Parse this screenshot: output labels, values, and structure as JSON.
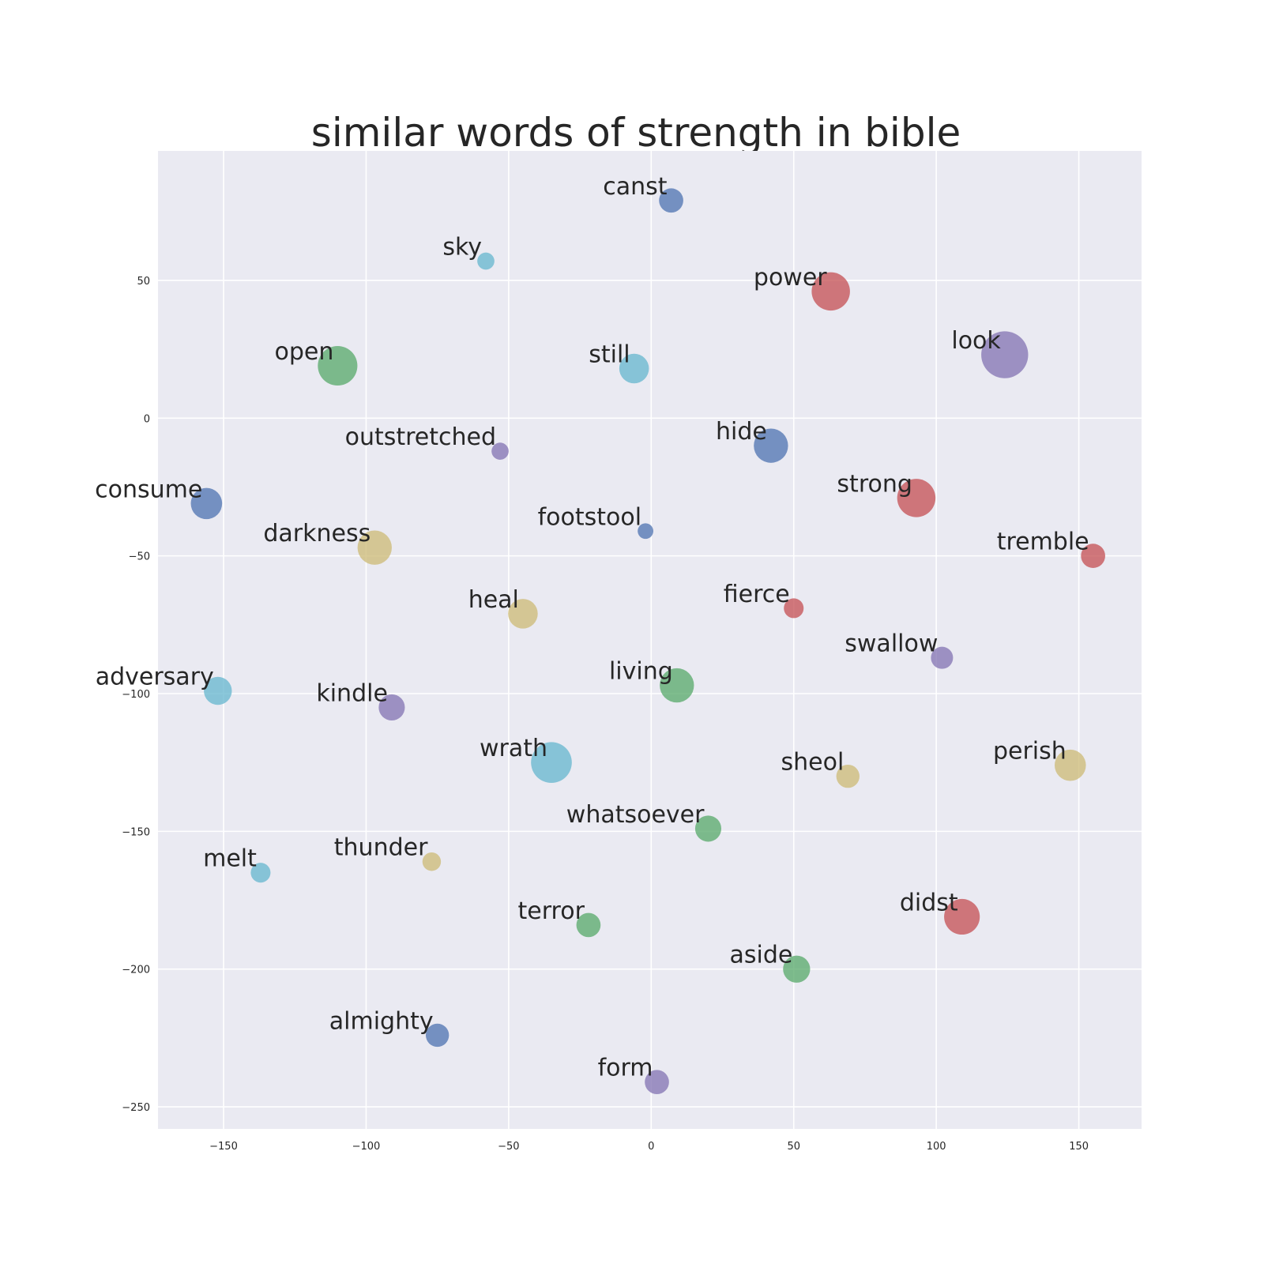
{
  "chart_data": {
    "type": "scatter",
    "title": "similar words of strength in bible",
    "xlabel": "",
    "ylabel": "",
    "xlim": [
      -173,
      172
    ],
    "ylim": [
      -258,
      97
    ],
    "xticks": [
      -150,
      -100,
      -50,
      0,
      50,
      100,
      150
    ],
    "yticks": [
      50,
      0,
      -50,
      -100,
      -150,
      -200,
      -250
    ],
    "xtick_labels": [
      "−150",
      "−100",
      "−50",
      "0",
      "50",
      "100",
      "150"
    ],
    "ytick_labels": [
      "50",
      "0",
      "−50",
      "−100",
      "−150",
      "−200",
      "−250"
    ],
    "grid": true,
    "background": "#eaeaf2",
    "colors": {
      "blue": "#4c72b0",
      "green": "#55a868",
      "red": "#c44e52",
      "purple": "#8172b2",
      "yellow": "#ccb974",
      "cyan": "#64b5cd"
    },
    "points": [
      {
        "word": "canst",
        "x": 7,
        "y": 79,
        "weight": 1.2,
        "color": "blue"
      },
      {
        "word": "sky",
        "x": -58,
        "y": 57,
        "weight": 0.6,
        "color": "cyan"
      },
      {
        "word": "power",
        "x": 63,
        "y": 46,
        "weight": 3.0,
        "color": "red"
      },
      {
        "word": "open",
        "x": -110,
        "y": 19,
        "weight": 3.2,
        "color": "green"
      },
      {
        "word": "still",
        "x": -6,
        "y": 18,
        "weight": 1.8,
        "color": "cyan"
      },
      {
        "word": "look",
        "x": 124,
        "y": 23,
        "weight": 4.5,
        "color": "purple"
      },
      {
        "word": "outstretched",
        "x": -53,
        "y": -12,
        "weight": 0.6,
        "color": "purple"
      },
      {
        "word": "hide",
        "x": 42,
        "y": -10,
        "weight": 2.4,
        "color": "blue"
      },
      {
        "word": "consume",
        "x": -156,
        "y": -31,
        "weight": 2.0,
        "color": "blue"
      },
      {
        "word": "strong",
        "x": 93,
        "y": -29,
        "weight": 3.0,
        "color": "red"
      },
      {
        "word": "footstool",
        "x": -2,
        "y": -41,
        "weight": 0.5,
        "color": "blue"
      },
      {
        "word": "darkness",
        "x": -97,
        "y": -47,
        "weight": 2.4,
        "color": "yellow"
      },
      {
        "word": "tremble",
        "x": 155,
        "y": -50,
        "weight": 1.2,
        "color": "red"
      },
      {
        "word": "heal",
        "x": -45,
        "y": -71,
        "weight": 1.8,
        "color": "yellow"
      },
      {
        "word": "fierce",
        "x": 50,
        "y": -69,
        "weight": 0.8,
        "color": "red"
      },
      {
        "word": "swallow",
        "x": 102,
        "y": -87,
        "weight": 1.0,
        "color": "purple"
      },
      {
        "word": "living",
        "x": 9,
        "y": -97,
        "weight": 2.4,
        "color": "green"
      },
      {
        "word": "adversary",
        "x": -152,
        "y": -99,
        "weight": 1.6,
        "color": "cyan"
      },
      {
        "word": "kindle",
        "x": -91,
        "y": -105,
        "weight": 1.4,
        "color": "purple"
      },
      {
        "word": "wrath",
        "x": -35,
        "y": -125,
        "weight": 3.4,
        "color": "cyan"
      },
      {
        "word": "sheol",
        "x": 69,
        "y": -130,
        "weight": 1.1,
        "color": "yellow"
      },
      {
        "word": "perish",
        "x": 147,
        "y": -126,
        "weight": 2.0,
        "color": "yellow"
      },
      {
        "word": "whatsoever",
        "x": 20,
        "y": -149,
        "weight": 1.4,
        "color": "green"
      },
      {
        "word": "thunder",
        "x": -77,
        "y": -161,
        "weight": 0.7,
        "color": "yellow"
      },
      {
        "word": "melt",
        "x": -137,
        "y": -165,
        "weight": 0.8,
        "color": "cyan"
      },
      {
        "word": "terror",
        "x": -22,
        "y": -184,
        "weight": 1.2,
        "color": "green"
      },
      {
        "word": "didst",
        "x": 109,
        "y": -181,
        "weight": 2.6,
        "color": "red"
      },
      {
        "word": "aside",
        "x": 51,
        "y": -200,
        "weight": 1.5,
        "color": "green"
      },
      {
        "word": "almighty",
        "x": -75,
        "y": -224,
        "weight": 1.1,
        "color": "blue"
      },
      {
        "word": "form",
        "x": 2,
        "y": -241,
        "weight": 1.2,
        "color": "purple"
      }
    ]
  }
}
